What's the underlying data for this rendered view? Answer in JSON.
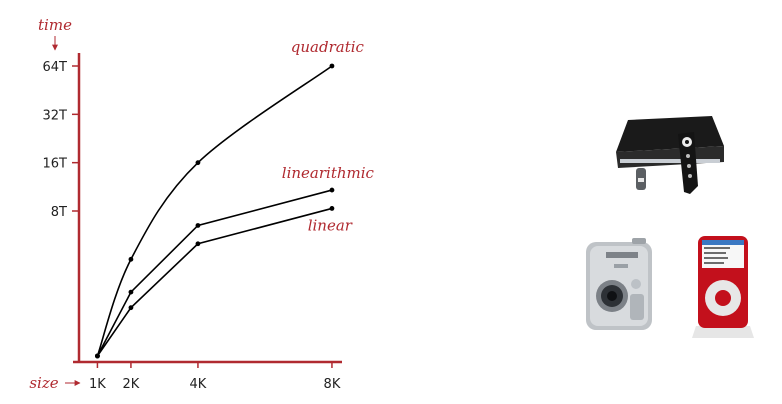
{
  "chart_data": {
    "type": "line",
    "ylabel": "time",
    "xlabel": "size",
    "x_ticks": [
      {
        "value": 1,
        "label": "1K"
      },
      {
        "value": 2,
        "label": "2K"
      },
      {
        "value": 4,
        "label": "4K"
      },
      {
        "value": 8,
        "label": "8K"
      }
    ],
    "y_ticks": [
      {
        "value": 8,
        "label": "8T"
      },
      {
        "value": 16,
        "label": "16T"
      },
      {
        "value": 32,
        "label": "32T"
      },
      {
        "value": 64,
        "label": "64T"
      }
    ],
    "xlim": [
      0.45,
      8.3
    ],
    "ylim": [
      1,
      64
    ],
    "y_scale": "log",
    "grid": false,
    "series": [
      {
        "name": "quadratic",
        "type": "smooth-curve",
        "x": [
          1,
          2,
          4,
          8
        ],
        "y": [
          1,
          4,
          16,
          64
        ]
      },
      {
        "name": "linearithmic",
        "x": [
          1,
          2,
          4,
          8
        ],
        "y": [
          1,
          2.5,
          6.5,
          10.8
        ]
      },
      {
        "name": "linear",
        "x": [
          1,
          2,
          4,
          8
        ],
        "y": [
          1,
          2,
          5,
          8.3
        ]
      }
    ],
    "colors": {
      "axis": "#b02a30",
      "label": "#b02a30",
      "line": "#000000"
    }
  },
  "devices": [
    {
      "icon": "dvr-with-remote-icon"
    },
    {
      "icon": "digital-camera-icon"
    },
    {
      "icon": "red-music-player-icon"
    }
  ]
}
